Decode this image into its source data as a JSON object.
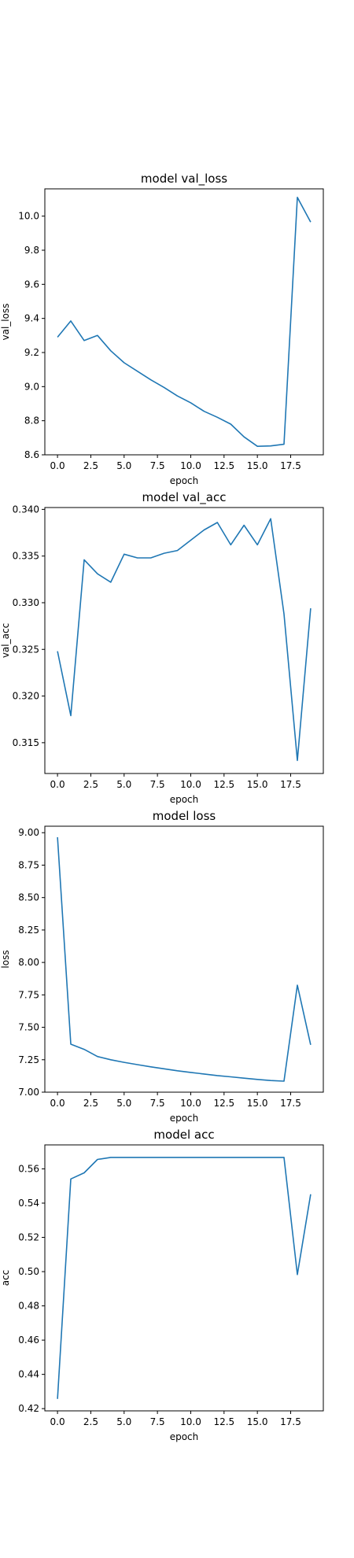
{
  "chart_data": [
    {
      "type": "line",
      "title": "model val_loss",
      "xlabel": "epoch",
      "ylabel": "val_loss",
      "xlim": [
        -0.95,
        19.95
      ],
      "ylim": [
        8.6,
        10.16
      ],
      "xticks": [
        0,
        2.5,
        5,
        7.5,
        10,
        12.5,
        15,
        17.5
      ],
      "xtick_labels": [
        "0.0",
        "2.5",
        "5.0",
        "7.5",
        "10.0",
        "12.5",
        "15.0",
        "17.5"
      ],
      "yticks": [
        8.6,
        8.8,
        9.0,
        9.2,
        9.4,
        9.6,
        9.8,
        10.0
      ],
      "ytick_labels": [
        "8.6",
        "8.8",
        "9.0",
        "9.2",
        "9.4",
        "9.6",
        "9.8",
        "10.0"
      ],
      "grid": false,
      "color": "#1f77b4",
      "x": [
        0,
        1,
        2,
        3,
        4,
        5,
        6,
        7,
        8,
        9,
        10,
        11,
        12,
        13,
        14,
        15,
        16,
        17,
        18,
        19
      ],
      "y": [
        9.29,
        9.385,
        9.27,
        9.3,
        9.21,
        9.14,
        9.09,
        9.04,
        8.995,
        8.945,
        8.905,
        8.855,
        8.82,
        8.78,
        8.705,
        8.65,
        8.652,
        8.662,
        10.11,
        9.965
      ]
    },
    {
      "type": "line",
      "title": "model val_acc",
      "xlabel": "epoch",
      "ylabel": "val_acc",
      "xlim": [
        -0.95,
        19.95
      ],
      "ylim": [
        0.3117,
        0.3402
      ],
      "xticks": [
        0,
        2.5,
        5,
        7.5,
        10,
        12.5,
        15,
        17.5
      ],
      "xtick_labels": [
        "0.0",
        "2.5",
        "5.0",
        "7.5",
        "10.0",
        "12.5",
        "15.0",
        "17.5"
      ],
      "yticks": [
        0.315,
        0.32,
        0.325,
        0.33,
        0.335,
        0.34
      ],
      "ytick_labels": [
        "0.315",
        "0.320",
        "0.325",
        "0.330",
        "0.335",
        "0.340"
      ],
      "grid": false,
      "color": "#1f77b4",
      "x": [
        0,
        1,
        2,
        3,
        4,
        5,
        6,
        7,
        8,
        9,
        10,
        11,
        12,
        13,
        14,
        15,
        16,
        17,
        18,
        19
      ],
      "y": [
        0.3248,
        0.3179,
        0.3346,
        0.3331,
        0.3322,
        0.3352,
        0.3348,
        0.3348,
        0.3353,
        0.3356,
        0.3367,
        0.3378,
        0.3386,
        0.3362,
        0.3383,
        0.3362,
        0.339,
        0.3288,
        0.3131,
        0.3294
      ]
    },
    {
      "type": "line",
      "title": "model loss",
      "xlabel": "epoch",
      "ylabel": "loss",
      "xlim": [
        -0.95,
        19.95
      ],
      "ylim": [
        7.0,
        9.05
      ],
      "xticks": [
        0,
        2.5,
        5,
        7.5,
        10,
        12.5,
        15,
        17.5
      ],
      "xtick_labels": [
        "0.0",
        "2.5",
        "5.0",
        "7.5",
        "10.0",
        "12.5",
        "15.0",
        "17.5"
      ],
      "yticks": [
        7.0,
        7.25,
        7.5,
        7.75,
        8.0,
        8.25,
        8.5,
        8.75,
        9.0
      ],
      "ytick_labels": [
        "7.00",
        "7.25",
        "7.50",
        "7.75",
        "8.00",
        "8.25",
        "8.50",
        "8.75",
        "9.00"
      ],
      "grid": false,
      "color": "#1f77b4",
      "x": [
        0,
        1,
        2,
        3,
        4,
        5,
        6,
        7,
        8,
        9,
        10,
        11,
        12,
        13,
        14,
        15,
        16,
        17,
        18,
        19
      ],
      "y": [
        8.965,
        7.37,
        7.33,
        7.275,
        7.25,
        7.23,
        7.212,
        7.195,
        7.18,
        7.165,
        7.152,
        7.14,
        7.128,
        7.118,
        7.108,
        7.098,
        7.09,
        7.085,
        7.825,
        7.365
      ]
    },
    {
      "type": "line",
      "title": "model acc",
      "xlabel": "epoch",
      "ylabel": "acc",
      "xlim": [
        -0.95,
        19.95
      ],
      "ylim": [
        0.4187,
        0.574
      ],
      "xticks": [
        0,
        2.5,
        5,
        7.5,
        10,
        12.5,
        15,
        17.5
      ],
      "xtick_labels": [
        "0.0",
        "2.5",
        "5.0",
        "7.5",
        "10.0",
        "12.5",
        "15.0",
        "17.5"
      ],
      "yticks": [
        0.42,
        0.44,
        0.46,
        0.48,
        0.5,
        0.52,
        0.54,
        0.56
      ],
      "ytick_labels": [
        "0.42",
        "0.44",
        "0.46",
        "0.48",
        "0.50",
        "0.52",
        "0.54",
        "0.56"
      ],
      "grid": false,
      "color": "#1f77b4",
      "x": [
        0,
        1,
        2,
        3,
        4,
        5,
        6,
        7,
        8,
        9,
        10,
        11,
        12,
        13,
        14,
        15,
        16,
        17,
        18,
        19
      ],
      "y": [
        0.4257,
        0.5541,
        0.5577,
        0.5655,
        0.5667,
        0.5667,
        0.5667,
        0.5667,
        0.5667,
        0.5667,
        0.5667,
        0.5667,
        0.5667,
        0.5667,
        0.5667,
        0.5667,
        0.5667,
        0.5667,
        0.4983,
        0.5452
      ]
    }
  ]
}
